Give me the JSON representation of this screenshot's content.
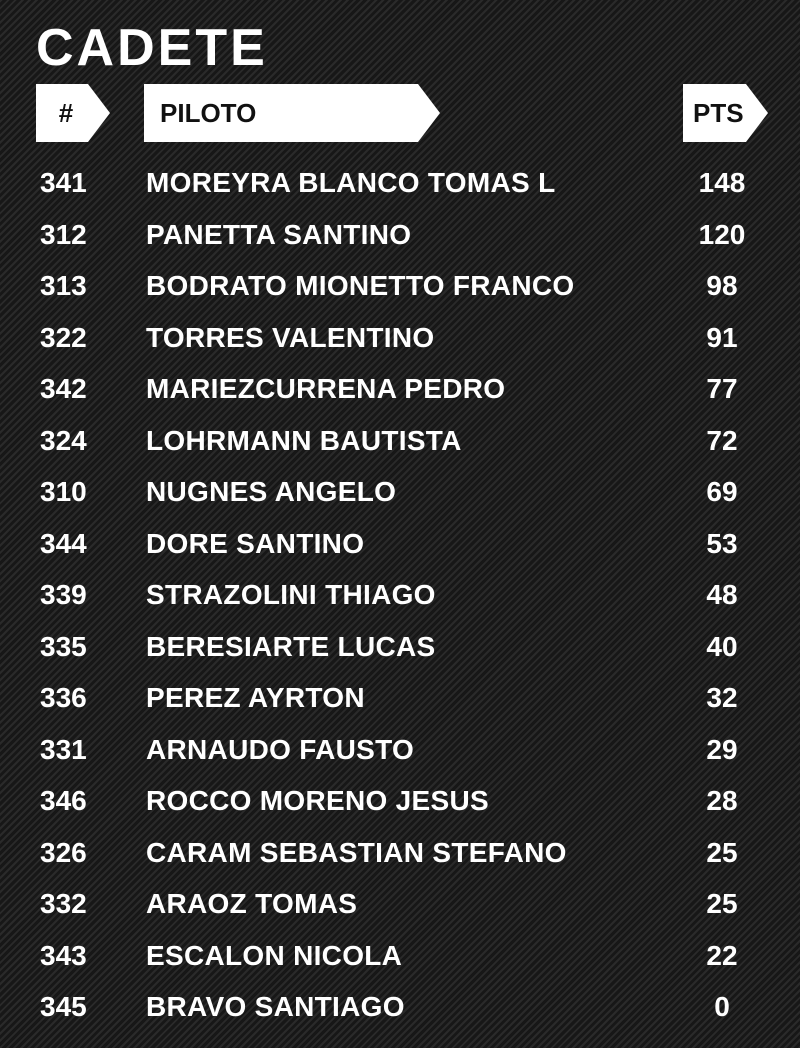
{
  "title": "CADETE",
  "headers": {
    "number": "#",
    "driver": "PILOTO",
    "points": "PTS"
  },
  "rows": [
    {
      "number": "341",
      "driver": "MOREYRA BLANCO TOMAS L",
      "points": "148"
    },
    {
      "number": "312",
      "driver": "PANETTA SANTINO",
      "points": "120"
    },
    {
      "number": "313",
      "driver": "BODRATO MIONETTO FRANCO",
      "points": "98"
    },
    {
      "number": "322",
      "driver": "TORRES VALENTINO",
      "points": "91"
    },
    {
      "number": "342",
      "driver": "MARIEZCURRENA PEDRO",
      "points": "77"
    },
    {
      "number": "324",
      "driver": "LOHRMANN BAUTISTA",
      "points": "72"
    },
    {
      "number": "310",
      "driver": "NUGNES ANGELO",
      "points": "69"
    },
    {
      "number": "344",
      "driver": "DORE SANTINO",
      "points": "53"
    },
    {
      "number": "339",
      "driver": "STRAZOLINI THIAGO",
      "points": "48"
    },
    {
      "number": "335",
      "driver": "BERESIARTE LUCAS",
      "points": "40"
    },
    {
      "number": "336",
      "driver": "PEREZ AYRTON",
      "points": "32"
    },
    {
      "number": "331",
      "driver": "ARNAUDO FAUSTO",
      "points": "29"
    },
    {
      "number": "346",
      "driver": "ROCCO MORENO JESUS",
      "points": "28"
    },
    {
      "number": "326",
      "driver": "CARAM SEBASTIAN STEFANO",
      "points": "25"
    },
    {
      "number": "332",
      "driver": "ARAOZ TOMAS",
      "points": "25"
    },
    {
      "number": "343",
      "driver": "ESCALON NICOLA",
      "points": "22"
    },
    {
      "number": "345",
      "driver": "BRAVO SANTIAGO",
      "points": "0"
    }
  ]
}
